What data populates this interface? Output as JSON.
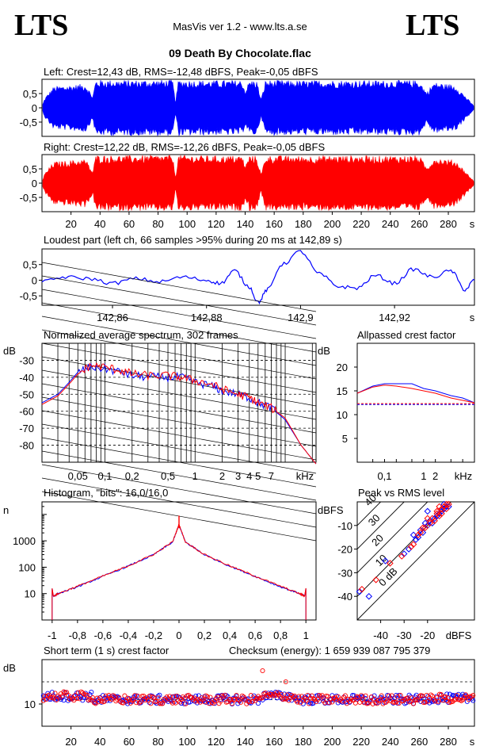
{
  "header": {
    "logo_left": "LTS",
    "logo_right": "LTS",
    "app_title": "MasVis ver 1.2 - www.lts.a.se",
    "file_title": "09 Death By Chocolate.flac"
  },
  "colors": {
    "left": "#0000ff",
    "right": "#ff0000",
    "axis": "#000000"
  },
  "chart_data": [
    {
      "id": "left-waveform",
      "type": "area",
      "title": "Left: Crest=12,43 dB, RMS=-12,48 dBFS, Peak=-0,05 dBFS",
      "yticks": [
        "0.5",
        "0",
        "-0.5"
      ],
      "ytick_labels": [
        "0,5",
        "0",
        "-0,5"
      ],
      "ylim": [
        -1,
        1
      ],
      "xlim": [
        0,
        298
      ],
      "envelope": [
        [
          0,
          0.05
        ],
        [
          2,
          0.35
        ],
        [
          8,
          0.75
        ],
        [
          20,
          0.8
        ],
        [
          30,
          0.85
        ],
        [
          35,
          0.4
        ],
        [
          37,
          0.98
        ],
        [
          60,
          0.97
        ],
        [
          80,
          0.98
        ],
        [
          90,
          0.98
        ],
        [
          92,
          0.2
        ],
        [
          94,
          0.98
        ],
        [
          120,
          0.96
        ],
        [
          138,
          0.97
        ],
        [
          140,
          0.6
        ],
        [
          143,
          0.97
        ],
        [
          148,
          0.96
        ],
        [
          151,
          0.3
        ],
        [
          154,
          0.97
        ],
        [
          180,
          0.95
        ],
        [
          200,
          0.97
        ],
        [
          230,
          0.96
        ],
        [
          260,
          0.97
        ],
        [
          265,
          0.55
        ],
        [
          270,
          0.9
        ],
        [
          285,
          0.8
        ],
        [
          292,
          0.4
        ],
        [
          298,
          0.05
        ]
      ]
    },
    {
      "id": "right-waveform",
      "type": "area",
      "title": "Right: Crest=12,22 dB, RMS=-12,26 dBFS, Peak=-0,05 dBFS",
      "yticks": [
        "0.5",
        "0",
        "-0.5"
      ],
      "ytick_labels": [
        "0,5",
        "0",
        "-0,5"
      ],
      "ylim": [
        -1,
        1
      ],
      "xlim": [
        0,
        298
      ],
      "xticks": [
        "20",
        "40",
        "60",
        "80",
        "100",
        "120",
        "140",
        "160",
        "180",
        "200",
        "220",
        "240",
        "260",
        "280"
      ],
      "xunit": "s",
      "envelope": [
        [
          0,
          0.05
        ],
        [
          2,
          0.35
        ],
        [
          8,
          0.75
        ],
        [
          20,
          0.8
        ],
        [
          30,
          0.85
        ],
        [
          35,
          0.4
        ],
        [
          37,
          0.98
        ],
        [
          60,
          0.97
        ],
        [
          80,
          0.98
        ],
        [
          90,
          0.98
        ],
        [
          92,
          0.2
        ],
        [
          94,
          0.98
        ],
        [
          120,
          0.96
        ],
        [
          138,
          0.97
        ],
        [
          140,
          0.6
        ],
        [
          143,
          0.97
        ],
        [
          148,
          0.96
        ],
        [
          151,
          0.3
        ],
        [
          154,
          0.97
        ],
        [
          180,
          0.95
        ],
        [
          200,
          0.97
        ],
        [
          230,
          0.96
        ],
        [
          260,
          0.97
        ],
        [
          265,
          0.55
        ],
        [
          270,
          0.9
        ],
        [
          285,
          0.8
        ],
        [
          292,
          0.4
        ],
        [
          298,
          0.05
        ]
      ]
    },
    {
      "id": "loudest-part",
      "type": "line",
      "title": "Loudest part (left  ch, 66 samples >95% during 20 ms at 142,89 s)",
      "yticks": [
        "0.5",
        "0",
        "-0.5"
      ],
      "ytick_labels": [
        "0,5",
        "0",
        "-0,5"
      ],
      "ylim": [
        -0.8,
        1.0
      ],
      "xlim": [
        142.845,
        142.937
      ],
      "xticks": [
        "142.86",
        "142.88",
        "142.9",
        "142.92"
      ],
      "xtick_labels": [
        "142,86",
        "142,88",
        "142,9",
        "142,92"
      ],
      "xunit": "s",
      "x": [
        142.845,
        142.85,
        142.855,
        142.86,
        142.865,
        142.87,
        142.875,
        142.88,
        142.883,
        142.886,
        142.889,
        142.891,
        142.893,
        142.896,
        142.9,
        142.904,
        142.908,
        142.912,
        142.916,
        142.92,
        142.924,
        142.928,
        142.932,
        142.935,
        142.937
      ],
      "y": [
        -0.05,
        0.1,
        0.05,
        -0.1,
        0.05,
        -0.05,
        0.1,
        0.0,
        -0.1,
        0.3,
        -0.2,
        -0.7,
        -0.3,
        0.5,
        0.92,
        0.2,
        -0.2,
        -0.25,
        0.15,
        -0.1,
        0.35,
        0.1,
        0.3,
        -0.3,
        0.0
      ]
    },
    {
      "id": "average-spectrum",
      "type": "line",
      "title": "Normalized average spectrum, 302 frames",
      "ylabel": "dB",
      "xunit": "kHz",
      "xscale": "log",
      "xlim": [
        0.02,
        22
      ],
      "ylim": [
        -90,
        -20
      ],
      "yticks": [
        "-30",
        "-40",
        "-50",
        "-60",
        "-70",
        "-80"
      ],
      "xticks": [
        "0.05",
        "0.1",
        "0.2",
        "0.5",
        "1",
        "2",
        "3",
        "4",
        "5",
        "7"
      ],
      "xtick_labels": [
        "0,05",
        "0,1",
        "0,2",
        "0,5",
        "1",
        "2",
        "3",
        "4",
        "5",
        "7"
      ],
      "series": [
        {
          "color": "#0000ff",
          "x": [
            0.02,
            0.03,
            0.04,
            0.05,
            0.07,
            0.1,
            0.15,
            0.2,
            0.3,
            0.5,
            0.7,
            1,
            1.5,
            2,
            3,
            4,
            5,
            7,
            10,
            15,
            22
          ],
          "y": [
            -55,
            -50,
            -43,
            -37,
            -34,
            -35,
            -37,
            -39,
            -40,
            -40,
            -40,
            -43,
            -45,
            -48,
            -50,
            -52,
            -55,
            -58,
            -65,
            -80,
            -91
          ]
        },
        {
          "color": "#ff0000",
          "x": [
            0.02,
            0.03,
            0.04,
            0.05,
            0.07,
            0.1,
            0.15,
            0.2,
            0.3,
            0.5,
            0.7,
            1,
            1.5,
            2,
            3,
            4,
            5,
            7,
            10,
            15,
            22
          ],
          "y": [
            -56,
            -51,
            -44,
            -38,
            -33,
            -34,
            -36,
            -38,
            -39,
            -39,
            -40,
            -42,
            -44,
            -47,
            -50,
            -52,
            -55,
            -58,
            -64,
            -80,
            -91
          ]
        }
      ]
    },
    {
      "id": "allpassed-crest",
      "type": "line",
      "title": "Allpassed crest factor",
      "ylabel": "dB",
      "xunit": "kHz",
      "xscale": "log",
      "xlim": [
        0.02,
        20
      ],
      "ylim": [
        0,
        25
      ],
      "yticks": [
        "20",
        "15",
        "10",
        "5"
      ],
      "xticks": [
        "0.1",
        "1",
        "2"
      ],
      "xtick_labels": [
        "0,1",
        "1",
        "2"
      ],
      "reference_db": 12.3,
      "series": [
        {
          "color": "#0000ff",
          "x": [
            0.02,
            0.05,
            0.1,
            0.2,
            0.5,
            1,
            2,
            5,
            10,
            20
          ],
          "y": [
            14.5,
            16,
            16.5,
            16.5,
            16.5,
            15.5,
            15,
            14,
            13.5,
            12.5
          ]
        },
        {
          "color": "#ff0000",
          "x": [
            0.02,
            0.05,
            0.1,
            0.2,
            0.5,
            1,
            2,
            5,
            10,
            20
          ],
          "y": [
            14.5,
            15.8,
            16.2,
            16,
            15.5,
            15,
            14.5,
            13.5,
            13,
            12.5
          ]
        }
      ]
    },
    {
      "id": "histogram",
      "type": "line",
      "title": "Histogram, \"bits\": 16,0/16,0",
      "ylabel": "n",
      "yscale": "log",
      "ylim": [
        1,
        30000
      ],
      "xlim": [
        -1.08,
        1.08
      ],
      "yticks": [
        "1000",
        "100",
        "10"
      ],
      "xticks": [
        "-1",
        "-0.8",
        "-0.6",
        "-0.4",
        "-0.2",
        "0",
        "0.2",
        "0.4",
        "0.6",
        "0.8",
        "1"
      ],
      "xtick_labels": [
        "-1",
        "-0,8",
        "-0,6",
        "-0,4",
        "-0,2",
        "0",
        "0,2",
        "0,4",
        "0,6",
        "0,8",
        "1"
      ],
      "series": [
        {
          "color": "#0000ff",
          "x": [
            -1,
            -0.99,
            -0.95,
            -0.8,
            -0.6,
            -0.4,
            -0.2,
            -0.05,
            0,
            0.05,
            0.2,
            0.4,
            0.6,
            0.8,
            0.95,
            0.99,
            1
          ],
          "y": [
            15,
            8,
            10,
            18,
            45,
            110,
            300,
            900,
            4000,
            900,
            300,
            110,
            45,
            18,
            10,
            8,
            15
          ]
        },
        {
          "color": "#ff0000",
          "x": [
            -1,
            -0.99,
            -0.95,
            -0.8,
            -0.6,
            -0.4,
            -0.2,
            -0.05,
            0,
            0.05,
            0.2,
            0.4,
            0.6,
            0.8,
            0.95,
            0.99,
            1
          ],
          "y": [
            16,
            8,
            10,
            19,
            46,
            112,
            305,
            920,
            4200,
            920,
            305,
            112,
            46,
            19,
            10,
            8,
            16
          ]
        }
      ]
    },
    {
      "id": "peak-vs-rms",
      "type": "scatter",
      "title": "Peak vs RMS level",
      "ylabel": "dBFS",
      "xunit": "dBFS",
      "xlim": [
        -50,
        0
      ],
      "ylim": [
        -50,
        0
      ],
      "yticks": [
        "-10",
        "-20",
        "-30",
        "-40"
      ],
      "xticks": [
        "-40",
        "-30",
        "-20"
      ],
      "diagonal_labels": [
        "40",
        "30",
        "20",
        "10",
        "0 dB"
      ],
      "series": [
        {
          "color": "#0000ff",
          "points": [
            [
              -49,
              -38
            ],
            [
              -45,
              -40
            ],
            [
              -38,
              -25
            ],
            [
              -30,
              -22
            ],
            [
              -28,
              -20
            ],
            [
              -25,
              -16
            ],
            [
              -24,
              -15
            ],
            [
              -22,
              -13
            ],
            [
              -20,
              -10
            ],
            [
              -19,
              -8
            ],
            [
              -18,
              -9
            ],
            [
              -17,
              -7
            ],
            [
              -16,
              -6
            ],
            [
              -15,
              -5
            ],
            [
              -14,
              -4
            ],
            [
              -13,
              -3
            ],
            [
              -12,
              -2
            ],
            [
              -11,
              -2
            ],
            [
              -20,
              -4
            ],
            [
              -26,
              -14
            ],
            [
              -23,
              -12
            ],
            [
              -21,
              -9
            ],
            [
              -14,
              -3
            ],
            [
              -13,
              -1
            ]
          ]
        },
        {
          "color": "#ff0000",
          "points": [
            [
              -48,
              -37
            ],
            [
              -42,
              -33
            ],
            [
              -36,
              -26
            ],
            [
              -31,
              -23
            ],
            [
              -27,
              -19
            ],
            [
              -26,
              -18
            ],
            [
              -23,
              -13
            ],
            [
              -21,
              -11
            ],
            [
              -19,
              -9
            ],
            [
              -18,
              -7
            ],
            [
              -17,
              -8
            ],
            [
              -16,
              -5
            ],
            [
              -15,
              -6
            ],
            [
              -14,
              -3
            ],
            [
              -13,
              -2
            ],
            [
              -12,
              -3
            ],
            [
              -11,
              -1
            ],
            [
              -12,
              -1
            ],
            [
              -16,
              -4
            ],
            [
              -22,
              -11
            ],
            [
              -20,
              -7
            ],
            [
              -15,
              -2
            ],
            [
              -14,
              -5
            ],
            [
              -24,
              -14
            ]
          ]
        }
      ]
    },
    {
      "id": "short-term-crest",
      "type": "scatter",
      "title": "Short term (1 s) crest factor",
      "checksum": "Checksum (energy):  1 659 939 087 795 379",
      "ylabel": "dB",
      "xunit": "s",
      "xlim": [
        0,
        298
      ],
      "ylim": [
        0,
        30
      ],
      "yticks": [
        "10"
      ],
      "reference_lines_db": [
        20,
        12
      ],
      "xticks": [
        "20",
        "40",
        "60",
        "80",
        "100",
        "120",
        "140",
        "160",
        "180",
        "200",
        "220",
        "240",
        "260",
        "280"
      ],
      "outliers": [
        [
          152,
          25
        ],
        [
          168,
          20
        ]
      ]
    }
  ]
}
